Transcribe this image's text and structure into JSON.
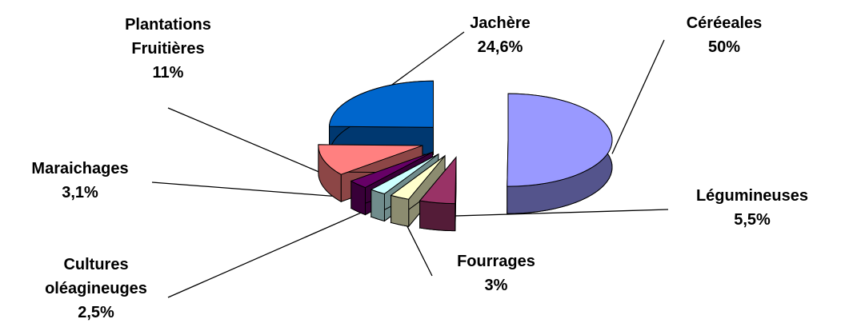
{
  "chart_data": {
    "type": "pie3d",
    "categories": [
      "Céréeales",
      "Légumineuses",
      "Fourrages",
      "Cultures oléagineuges",
      "Maraichages",
      "Plantations Fruitières",
      "Jachère"
    ],
    "values": [
      50,
      5.5,
      3,
      2.5,
      3.1,
      11,
      24.6
    ],
    "value_labels": [
      "50%",
      "5,5%",
      "3%",
      "2,5%",
      "3,1%",
      "11%",
      "24,6%"
    ],
    "colors": [
      "#9999ff",
      "#993366",
      "#ffffcc",
      "#ccffff",
      "#660066",
      "#ff8080",
      "#0066cc"
    ]
  }
}
